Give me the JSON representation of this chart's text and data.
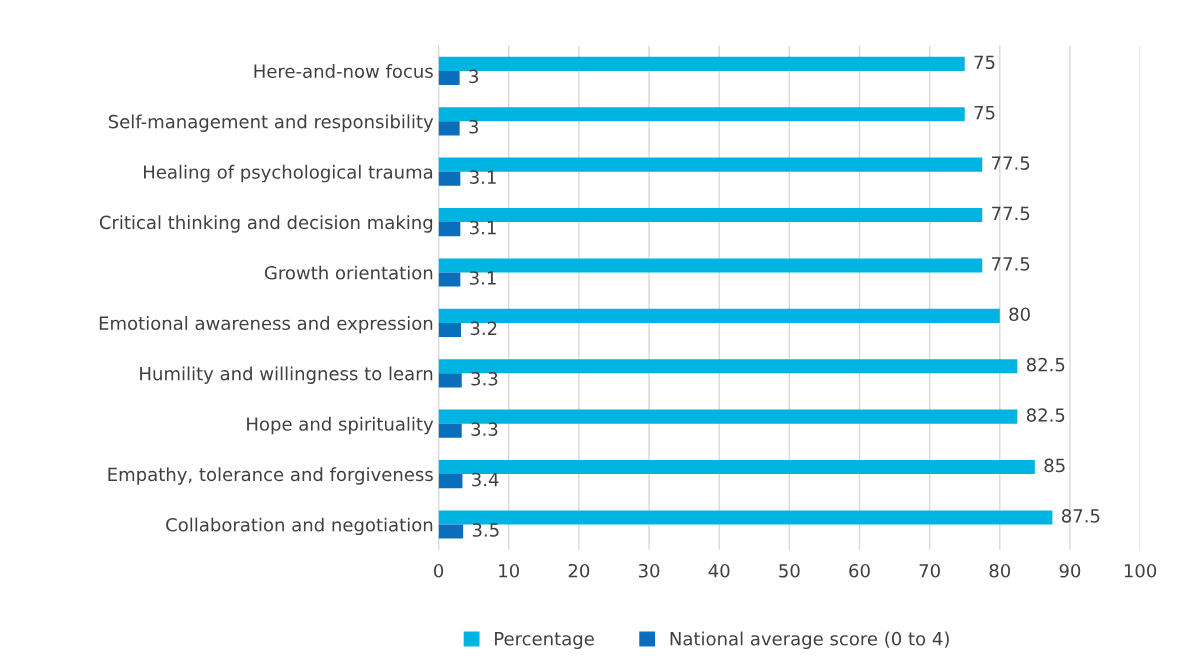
{
  "chart_data": {
    "type": "bar",
    "orientation": "horizontal",
    "categories": [
      "Here-and-now focus",
      "Self-management and responsibility",
      "Healing of psychological trauma",
      "Critical thinking and decision making",
      "Growth orientation",
      "Emotional awareness and expression",
      "Humility and willingness to learn",
      "Hope and spirituality",
      "Empathy, tolerance and forgiveness",
      "Collaboration and negotiation"
    ],
    "series": [
      {
        "name": "Percentage",
        "color": "#00b4e1",
        "values": [
          75,
          75,
          77.5,
          77.5,
          77.5,
          80,
          82.5,
          82.5,
          85,
          87.5
        ]
      },
      {
        "name": "National average score (0 to 4)",
        "color": "#0a6ebd",
        "values": [
          3,
          3,
          3.1,
          3.1,
          3.1,
          3.2,
          3.3,
          3.3,
          3.4,
          3.5
        ]
      }
    ],
    "xlim": [
      0,
      100
    ],
    "xticks": [
      0,
      10,
      20,
      30,
      40,
      50,
      60,
      70,
      80,
      90,
      100
    ],
    "grid": "x",
    "legend": "bottom",
    "data_labels": true
  }
}
